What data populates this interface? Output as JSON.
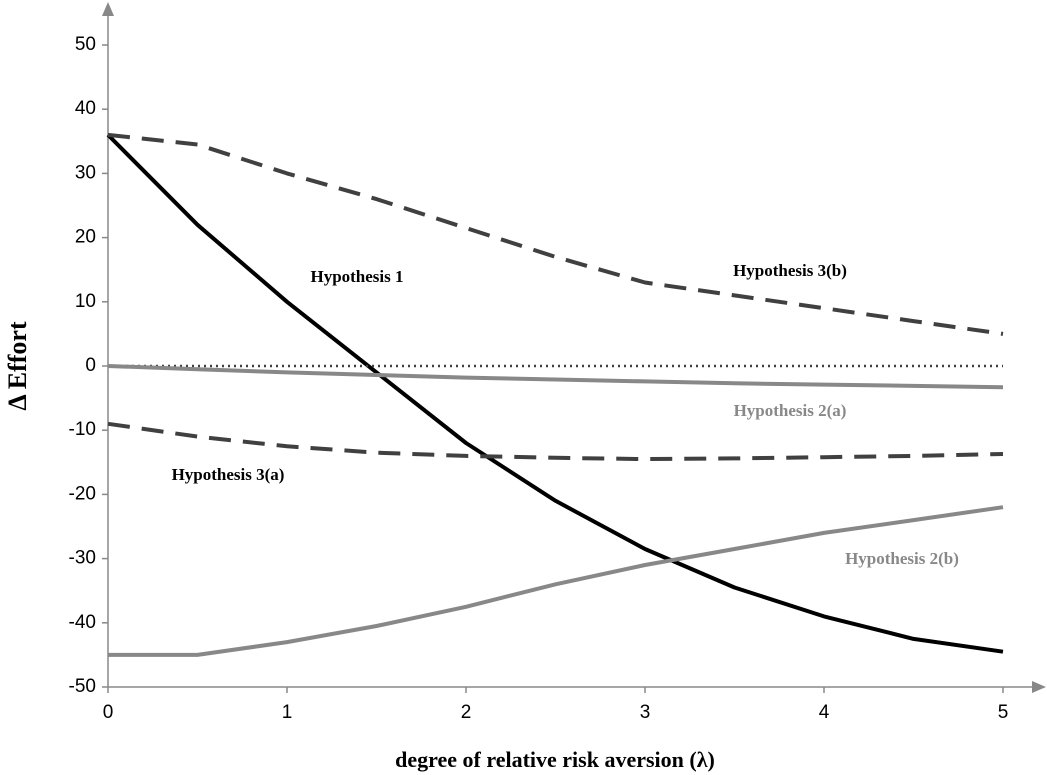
{
  "chart_data": {
    "type": "line",
    "x_label": "degree of relative risk aversion (λ)",
    "y_label": "Δ Effort",
    "x": [
      0,
      0.5,
      1,
      1.5,
      2,
      2.5,
      3,
      3.5,
      4,
      4.5,
      5
    ],
    "xlim": [
      0,
      5
    ],
    "xticks": [
      0,
      1,
      2,
      3,
      4,
      5
    ],
    "ylim": [
      -50,
      50
    ],
    "yticks": [
      -50,
      -40,
      -30,
      -20,
      -10,
      0,
      10,
      20,
      30,
      40,
      50
    ],
    "series": [
      {
        "name": "Hypothesis 1",
        "color": "#000000",
        "style": "solid",
        "values": [
          36,
          22,
          10,
          -1,
          -12,
          -21,
          -28.5,
          -34.5,
          -39,
          -42.5,
          -44.5
        ]
      },
      {
        "name": "Hypothesis 3(b)",
        "color": "#404040",
        "style": "dashed",
        "values": [
          36,
          34.5,
          30,
          26,
          21.5,
          17,
          13,
          11,
          9,
          7,
          5
        ]
      },
      {
        "color": "#404040",
        "style": "dotted",
        "values": [
          0,
          0,
          0,
          0,
          0,
          0,
          0,
          0,
          0,
          0,
          0
        ]
      },
      {
        "name": "Hypothesis 2(a)",
        "color": "#888888",
        "style": "solid",
        "values": [
          0,
          -0.5,
          -1,
          -1.4,
          -1.8,
          -2.1,
          -2.4,
          -2.7,
          -2.9,
          -3.1,
          -3.3
        ]
      },
      {
        "name": "Hypothesis 3(a)",
        "color": "#404040",
        "style": "dashed",
        "values": [
          -9,
          -11,
          -12.5,
          -13.5,
          -14,
          -14.3,
          -14.5,
          -14.4,
          -14.2,
          -14,
          -13.7
        ]
      },
      {
        "name": "Hypothesis 2(b)",
        "color": "#888888",
        "style": "solid",
        "values": [
          -45,
          -45,
          -43,
          -40.5,
          -37.5,
          -34,
          -31,
          -28.5,
          -26,
          -24,
          -22
        ]
      }
    ]
  }
}
